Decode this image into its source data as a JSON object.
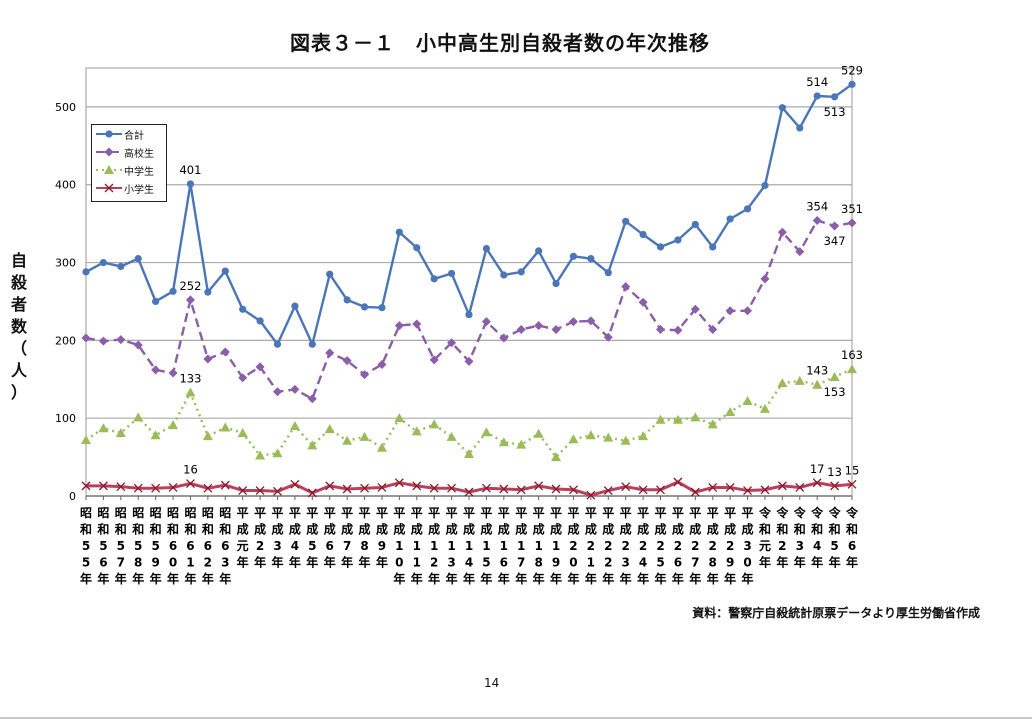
{
  "chart_data": {
    "type": "line",
    "title": "図表３－１　小中高生別自殺者数の年次推移",
    "ylabel": "自殺者数（人）",
    "xlabel": "",
    "ylim": [
      0,
      550
    ],
    "yticks": [
      0,
      100,
      200,
      300,
      400,
      500
    ],
    "grid": true,
    "legend_position": "top-left",
    "categories": [
      "昭和55年",
      "昭和56年",
      "昭和57年",
      "昭和58年",
      "昭和59年",
      "昭和60年",
      "昭和61年",
      "昭和62年",
      "昭和63年",
      "平成元年",
      "平成2年",
      "平成3年",
      "平成4年",
      "平成5年",
      "平成6年",
      "平成7年",
      "平成8年",
      "平成9年",
      "平成10年",
      "平成11年",
      "平成12年",
      "平成13年",
      "平成14年",
      "平成15年",
      "平成16年",
      "平成17年",
      "平成18年",
      "平成19年",
      "平成20年",
      "平成21年",
      "平成22年",
      "平成23年",
      "平成24年",
      "平成25年",
      "平成26年",
      "平成27年",
      "平成28年",
      "平成29年",
      "平成30年",
      "令和元年",
      "令和2年",
      "令和3年",
      "令和4年",
      "令和5年",
      "令和6年"
    ],
    "series": [
      {
        "name": "合計",
        "color": "#4a76b8",
        "style": "solid",
        "marker": "circle",
        "values": [
          288,
          300,
          295,
          305,
          250,
          263,
          401,
          262,
          289,
          240,
          225,
          195,
          244,
          195,
          285,
          252,
          243,
          242,
          339,
          319,
          279,
          286,
          233,
          318,
          284,
          288,
          315,
          273,
          308,
          305,
          287,
          353,
          336,
          320,
          329,
          349,
          320,
          356,
          369,
          399,
          499,
          473,
          514,
          513,
          529
        ],
        "labels": [
          {
            "index": 6,
            "text": "401",
            "pos": "above"
          },
          {
            "index": 42,
            "text": "514",
            "pos": "above"
          },
          {
            "index": 43,
            "text": "513",
            "pos": "below"
          },
          {
            "index": 44,
            "text": "529",
            "pos": "above"
          }
        ]
      },
      {
        "name": "高校生",
        "color": "#8a5ea8",
        "style": "dashed",
        "marker": "diamond",
        "values": [
          203,
          199,
          201,
          194,
          162,
          158,
          252,
          176,
          185,
          152,
          166,
          134,
          137,
          125,
          184,
          174,
          156,
          169,
          219,
          221,
          175,
          197,
          173,
          224,
          203,
          214,
          219,
          214,
          224,
          225,
          204,
          269,
          249,
          214,
          213,
          240,
          214,
          238,
          238,
          279,
          339,
          314,
          354,
          347,
          351
        ],
        "labels": [
          {
            "index": 6,
            "text": "252",
            "pos": "above"
          },
          {
            "index": 42,
            "text": "354",
            "pos": "above"
          },
          {
            "index": 43,
            "text": "347",
            "pos": "below"
          },
          {
            "index": 44,
            "text": "351",
            "pos": "above"
          }
        ]
      },
      {
        "name": "中学生",
        "color": "#9bbb59",
        "style": "dotted",
        "marker": "triangle",
        "values": [
          72,
          87,
          81,
          101,
          78,
          91,
          133,
          77,
          88,
          81,
          52,
          55,
          90,
          65,
          86,
          71,
          76,
          62,
          100,
          83,
          92,
          76,
          54,
          82,
          69,
          66,
          80,
          50,
          73,
          78,
          75,
          71,
          77,
          98,
          98,
          101,
          92,
          108,
          122,
          112,
          145,
          148,
          143,
          153,
          163
        ],
        "labels": [
          {
            "index": 6,
            "text": "133",
            "pos": "above"
          },
          {
            "index": 42,
            "text": "143",
            "pos": "above"
          },
          {
            "index": 43,
            "text": "153",
            "pos": "below"
          },
          {
            "index": 44,
            "text": "163",
            "pos": "above"
          }
        ]
      },
      {
        "name": "小学生",
        "color": "#b8405e",
        "style": "solid",
        "marker": "x",
        "values": [
          13,
          13,
          12,
          10,
          10,
          11,
          16,
          10,
          14,
          7,
          7,
          6,
          15,
          4,
          13,
          9,
          10,
          11,
          17,
          13,
          10,
          10,
          5,
          10,
          9,
          8,
          13,
          9,
          8,
          1,
          7,
          12,
          8,
          8,
          18,
          5,
          11,
          11,
          7,
          8,
          13,
          11,
          17,
          13,
          15
        ],
        "labels": [
          {
            "index": 6,
            "text": "16",
            "pos": "above"
          },
          {
            "index": 42,
            "text": "17",
            "pos": "above"
          },
          {
            "index": 43,
            "text": "13",
            "pos": "above"
          },
          {
            "index": 44,
            "text": "15",
            "pos": "above"
          }
        ]
      }
    ]
  },
  "source": "資料：警察庁自殺統計原票データより厚生労働省作成",
  "page_number": "14"
}
